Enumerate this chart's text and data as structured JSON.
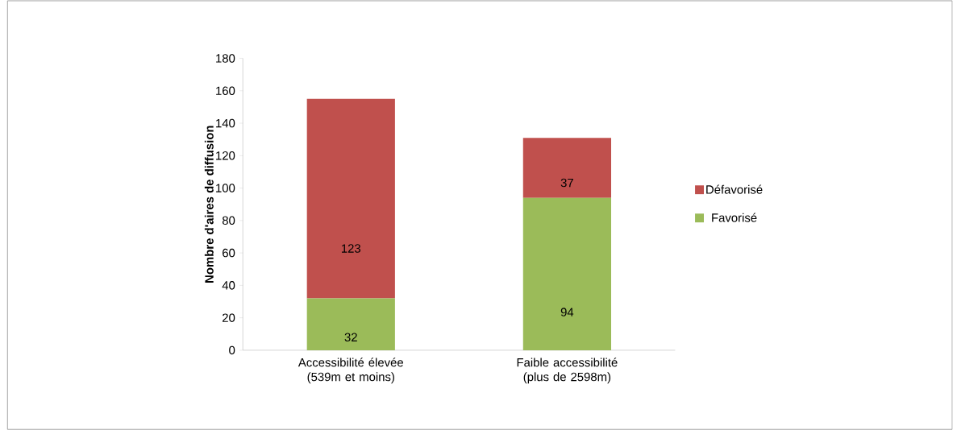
{
  "chart_data": {
    "type": "bar",
    "stacked": true,
    "ylabel": "Nombre d'aires de diffusion",
    "categories": [
      "Accessibilité élevée (539m et moins)",
      "Faible accessibilité (plus de 2598m)"
    ],
    "series": [
      {
        "name": "Favorisé",
        "color": "#9bbb59",
        "values": [
          32,
          94
        ]
      },
      {
        "name": "Défavorisé",
        "color": "#c0504d",
        "values": [
          123,
          37
        ]
      }
    ],
    "ylim": [
      0,
      180
    ],
    "yticks": [
      0,
      20,
      40,
      60,
      80,
      100,
      120,
      140,
      160,
      180
    ],
    "data_labels": true,
    "legend": "right",
    "grid": false
  }
}
